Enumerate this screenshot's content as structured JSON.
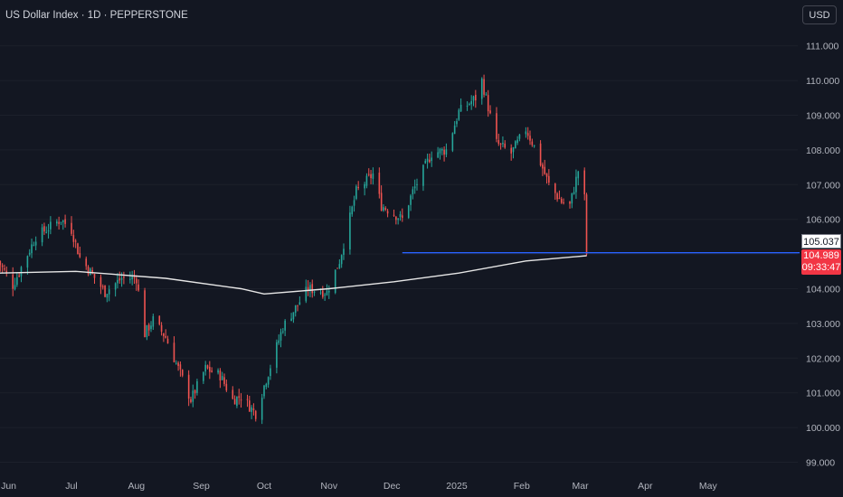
{
  "header": {
    "title": "US Dollar Index · 1D · PEPPERSTONE",
    "currency": "USD"
  },
  "price_tags": {
    "level": "105.037",
    "last_price": "104.989",
    "countdown": "09:33:47"
  },
  "colors": {
    "background": "#131722",
    "up": "#26a69a",
    "down": "#ef5350",
    "moving_average": "#e6e6e6",
    "level_line": "#2962ff",
    "text": "#b2b5be"
  },
  "chart_data": {
    "type": "candlestick",
    "symbol": "US Dollar Index",
    "timeframe": "1D",
    "source": "PEPPERSTONE",
    "x_axis": {
      "labels": [
        "Jun",
        "Jul",
        "Aug",
        "Sep",
        "Oct",
        "Nov",
        "Dec",
        "2025",
        "Feb",
        "Mar",
        "Apr",
        "May"
      ]
    },
    "y_axis": {
      "ticks": [
        "99.000",
        "100.000",
        "101.000",
        "102.000",
        "103.000",
        "104.000",
        "105.000",
        "106.000",
        "107.000",
        "108.000",
        "109.000",
        "110.000",
        "111.000"
      ],
      "range": [
        98.7,
        111.5
      ]
    },
    "close_path": [
      [
        "2024-05-27",
        104.8
      ],
      [
        "2024-06-03",
        104.1
      ],
      [
        "2024-06-14",
        105.5
      ],
      [
        "2024-06-26",
        106.0
      ],
      [
        "2024-07-01",
        105.7
      ],
      [
        "2024-07-05",
        104.9
      ],
      [
        "2024-07-17",
        103.9
      ],
      [
        "2024-07-25",
        104.3
      ],
      [
        "2024-08-01",
        104.3
      ],
      [
        "2024-08-05",
        102.7
      ],
      [
        "2024-08-09",
        103.1
      ],
      [
        "2024-08-15",
        102.6
      ],
      [
        "2024-08-27",
        100.8
      ],
      [
        "2024-09-03",
        101.7
      ],
      [
        "2024-09-10",
        101.5
      ],
      [
        "2024-09-16",
        100.8
      ],
      [
        "2024-09-20",
        100.9
      ],
      [
        "2024-09-27",
        100.4
      ],
      [
        "2024-10-01",
        101.2
      ],
      [
        "2024-10-10",
        102.9
      ],
      [
        "2024-10-22",
        104.0
      ],
      [
        "2024-10-31",
        103.9
      ],
      [
        "2024-11-06",
        104.8
      ],
      [
        "2024-11-14",
        106.8
      ],
      [
        "2024-11-22",
        107.3
      ],
      [
        "2024-11-26",
        106.4
      ],
      [
        "2024-12-06",
        106.0
      ],
      [
        "2024-12-11",
        106.8
      ],
      [
        "2024-12-20",
        107.9
      ],
      [
        "2024-12-27",
        108.0
      ],
      [
        "2025-01-02",
        109.1
      ],
      [
        "2025-01-10",
        109.5
      ],
      [
        "2025-01-13",
        110.0
      ],
      [
        "2025-01-20",
        108.2
      ],
      [
        "2025-01-27",
        107.9
      ],
      [
        "2025-02-03",
        108.6
      ],
      [
        "2025-02-07",
        108.1
      ],
      [
        "2025-02-14",
        107.0
      ],
      [
        "2025-02-20",
        106.5
      ],
      [
        "2025-02-24",
        106.4
      ],
      [
        "2025-02-28",
        107.4
      ],
      [
        "2025-03-03",
        106.6
      ],
      [
        "2025-03-04",
        104.989
      ]
    ],
    "moving_average": [
      [
        "2024-05-27",
        104.45
      ],
      [
        "2024-07-03",
        104.5
      ],
      [
        "2024-08-15",
        104.3
      ],
      [
        "2024-09-20",
        104.0
      ],
      [
        "2024-10-01",
        103.85
      ],
      [
        "2024-11-01",
        104.0
      ],
      [
        "2024-12-02",
        104.2
      ],
      [
        "2025-01-02",
        104.45
      ],
      [
        "2025-02-03",
        104.8
      ],
      [
        "2025-03-04",
        104.95
      ]
    ],
    "horizontal_level": {
      "value": 105.037,
      "from": "2024-12-06"
    },
    "last_price": 104.989
  }
}
